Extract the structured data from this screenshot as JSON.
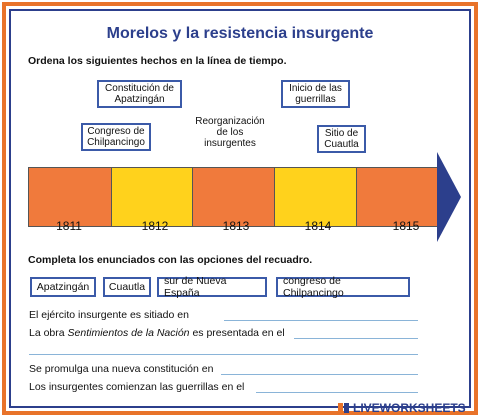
{
  "title": "Morelos y la resistencia insurgente",
  "instructions": {
    "timeline": "Ordena los siguientes hechos en la línea de tiempo.",
    "complete": "Completa los enunciados con las opciones del recuadro."
  },
  "events": [
    {
      "text": "Constitución de\nApatzingán"
    },
    {
      "text": "Inicio de las\nguerrillas"
    },
    {
      "text": "Congreso de\nChilpancingo"
    },
    {
      "text": "Reorganización\nde los\ninsurgentes"
    },
    {
      "text": "Sitio de\nCuautla"
    }
  ],
  "timeline": {
    "years": [
      "1811",
      "1812",
      "1813",
      "1814",
      "1815"
    ],
    "colors": {
      "orange": "#f07a3c",
      "yellow": "#ffd21c",
      "arrow": "#2c3f8c"
    }
  },
  "options": [
    "Apatzingán",
    "Cuautla",
    "sur de Nueva España",
    "congreso de Chilpancingo"
  ],
  "sentences": [
    {
      "before": "El ejército insurgente es sitiado en",
      "italic": "",
      "after": ""
    },
    {
      "before": "La obra ",
      "italic": "Sentimientos de la Nación",
      "after": " es presentada en el"
    },
    {
      "before": "Se promulga una nueva constitución en",
      "italic": "",
      "after": ""
    },
    {
      "before": "Los insurgentes comienzan las guerrillas en el",
      "italic": "",
      "after": ""
    }
  ],
  "brand": {
    "text": "LIVEWORKSHEETS"
  }
}
